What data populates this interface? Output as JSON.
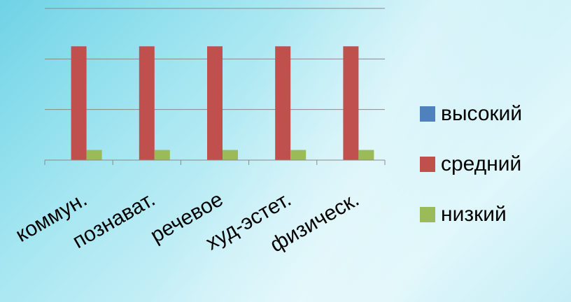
{
  "chart_data": {
    "type": "bar",
    "categories": [
      "коммун.",
      "познават.",
      "речевое",
      "худ-эстет.",
      "физическ."
    ],
    "series": [
      {
        "name": "высокий",
        "color": "#4f81bd",
        "values": [
          0,
          0,
          0,
          0,
          0
        ]
      },
      {
        "name": "средний",
        "color": "#c0504d",
        "values": [
          90,
          90,
          90,
          90,
          90
        ]
      },
      {
        "name": "низкий",
        "color": "#9bbb59",
        "values": [
          8,
          8,
          8,
          8,
          8
        ]
      }
    ],
    "ylim": [
      0,
      120
    ],
    "ytick_step": 40,
    "grid": true,
    "legend_position": "right",
    "title": "",
    "xlabel": "",
    "ylabel": ""
  }
}
